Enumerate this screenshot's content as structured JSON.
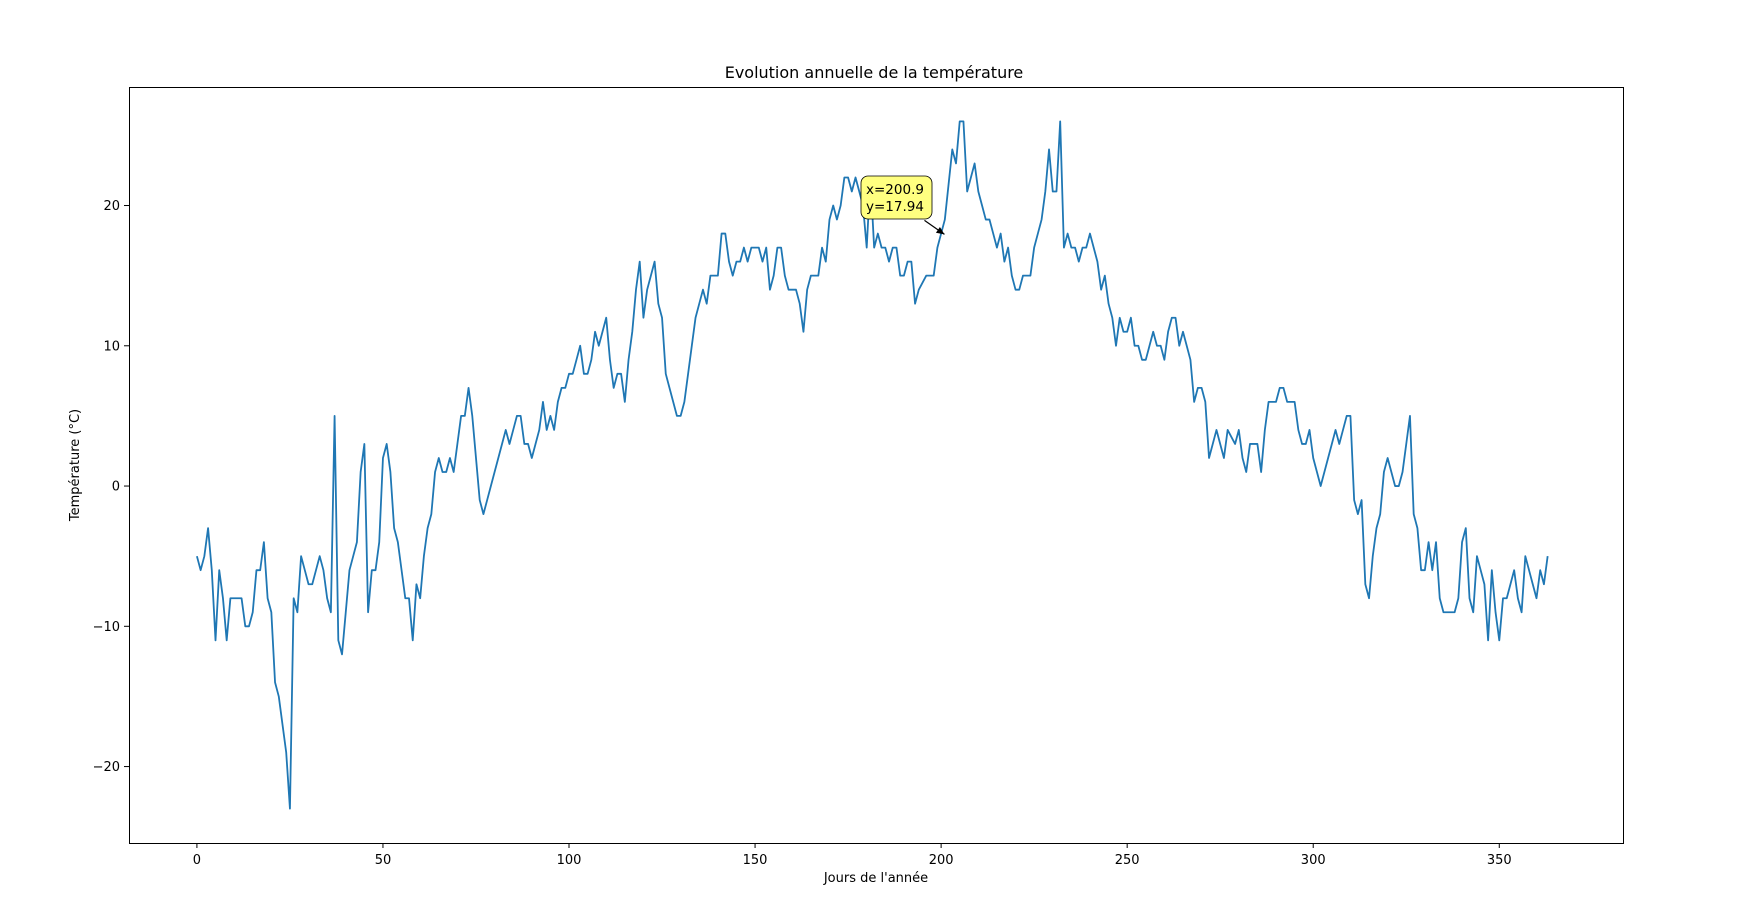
{
  "chart_data": {
    "type": "line",
    "title": "Evolution annuelle de la température",
    "xlabel": "Jours de l'année",
    "ylabel": "Température (°C)",
    "xlim": [
      -18.25,
      383.25
    ],
    "ylim": [
      -25.45,
      28.45
    ],
    "xticks": [
      0,
      50,
      100,
      150,
      200,
      250,
      300,
      350
    ],
    "yticks": [
      -20,
      -10,
      0,
      10,
      20
    ],
    "grid": false,
    "series": [
      {
        "color": "#1f77b4",
        "x_start": 0,
        "x_step": 1,
        "values": [
          -5,
          -6,
          -5,
          -3,
          -6,
          -11,
          -6,
          -8,
          -11,
          -8,
          -8,
          -8,
          -8,
          -10,
          -10,
          -9,
          -6,
          -6,
          -4,
          -8,
          -9,
          -14,
          -15,
          -17,
          -19,
          -23,
          -8,
          -9,
          -5,
          -6,
          -7,
          -7,
          -6,
          -5,
          -6,
          -8,
          -9,
          5,
          -11,
          -12,
          -9,
          -6,
          -5,
          -4,
          1,
          3,
          -9,
          -6,
          -6,
          -4,
          2,
          3,
          1,
          -3,
          -4,
          -6,
          -8,
          -8,
          -11,
          -7,
          -8,
          -5,
          -3,
          -2,
          1,
          2,
          1,
          1,
          2,
          1,
          3,
          5,
          5,
          7,
          5,
          2,
          -1,
          -2,
          -1,
          0,
          1,
          2,
          3,
          4,
          3,
          4,
          5,
          5,
          3,
          3,
          2,
          3,
          4,
          6,
          4,
          5,
          4,
          6,
          7,
          7,
          8,
          8,
          9,
          10,
          8,
          8,
          9,
          11,
          10,
          11,
          12,
          9,
          7,
          8,
          8,
          6,
          9,
          11,
          14,
          16,
          12,
          14,
          15,
          16,
          13,
          12,
          8,
          7,
          6,
          5,
          5,
          6,
          8,
          10,
          12,
          13,
          14,
          13,
          15,
          15,
          15,
          18,
          18,
          16,
          15,
          16,
          16,
          17,
          16,
          17,
          17,
          17,
          16,
          17,
          14,
          15,
          17,
          17,
          15,
          14,
          14,
          14,
          13,
          11,
          14,
          15,
          15,
          15,
          17,
          16,
          19,
          20,
          19,
          20,
          22,
          22,
          21,
          22,
          21,
          20,
          17,
          22,
          17,
          18,
          17,
          17,
          16,
          17,
          17,
          15,
          15,
          16,
          16,
          13,
          14,
          14.5,
          15,
          15,
          15,
          17,
          18,
          19,
          21.5,
          24,
          23,
          26,
          26,
          21,
          22,
          23,
          21,
          20,
          19,
          19,
          18,
          17,
          18,
          16,
          17,
          15,
          14,
          14,
          15,
          15,
          15,
          17,
          18,
          19,
          21,
          24,
          21,
          21,
          26,
          17,
          18,
          17,
          17,
          16,
          17,
          17,
          18,
          17,
          16,
          14,
          15,
          13,
          12,
          10,
          12,
          11,
          11,
          12,
          10,
          10,
          9,
          9,
          10,
          11,
          10,
          10,
          9,
          11,
          12,
          12,
          10,
          11,
          10,
          9,
          6,
          7,
          7,
          6,
          2,
          3,
          4,
          3,
          2,
          4,
          3.5,
          3,
          4,
          2,
          1,
          3,
          3,
          3,
          1,
          4,
          6,
          6,
          6,
          7,
          7,
          6,
          6,
          6,
          4,
          3,
          3,
          4,
          2,
          1,
          0,
          1,
          2,
          3,
          4,
          3,
          4,
          5,
          5,
          -1,
          -2,
          -1,
          -7,
          -8,
          -5,
          -3,
          -2,
          1,
          2,
          1,
          0,
          0,
          1,
          3,
          5,
          -2,
          -3,
          -6,
          -6,
          -4,
          -6,
          -4,
          -8,
          -9,
          -9,
          -9,
          -9,
          -8,
          -4,
          -3,
          -8,
          -9,
          -5,
          -6,
          -7,
          -11,
          -6,
          -9,
          -11,
          -8,
          -8,
          -7,
          -6,
          -8,
          -9,
          -5,
          -6,
          -7,
          -8,
          -6,
          -7,
          -5
        ]
      }
    ],
    "annotation": {
      "lines": [
        "x=200.9",
        "y=17.94"
      ],
      "point": [
        200.9,
        17.94
      ],
      "background": "#ffff80"
    }
  }
}
